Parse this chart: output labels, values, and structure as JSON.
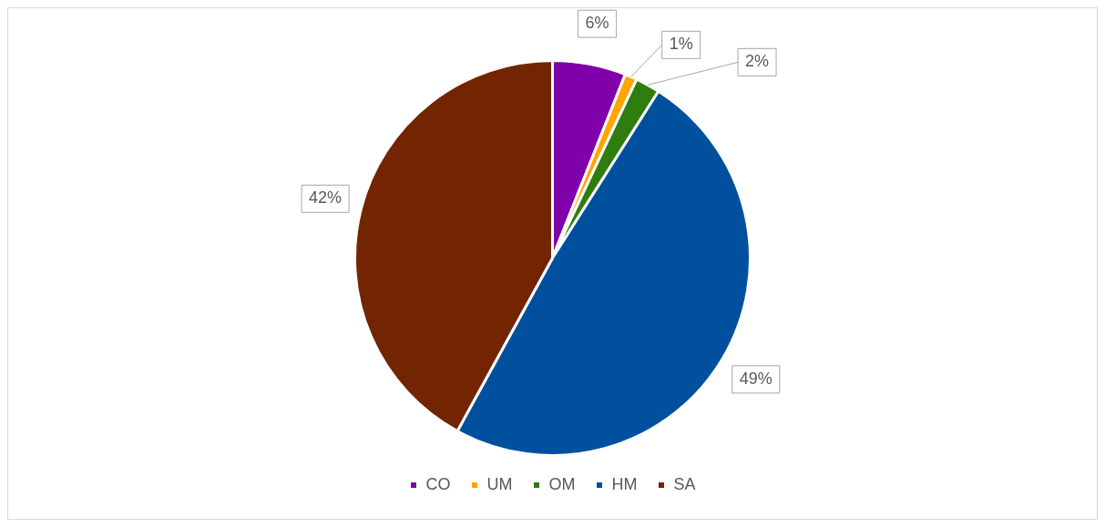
{
  "chart_data": {
    "type": "pie",
    "categories": [
      "CO",
      "UM",
      "OM",
      "HM",
      "SA"
    ],
    "values": [
      6,
      1,
      2,
      49,
      42
    ],
    "colors": [
      "#8000aa",
      "#ffa500",
      "#2e7d0e",
      "#00509e",
      "#722500"
    ],
    "value_labels": [
      "6%",
      "1%",
      "2%",
      "49%",
      "42%"
    ],
    "legend": "bottom"
  }
}
